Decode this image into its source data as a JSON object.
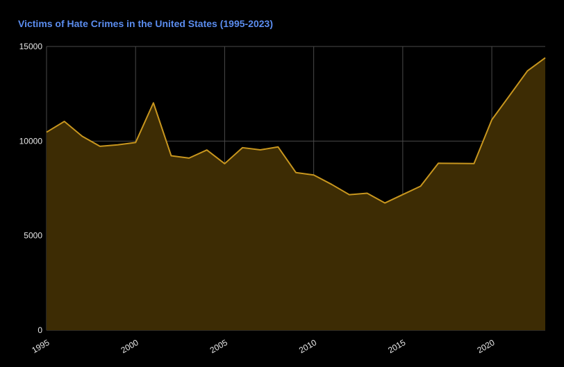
{
  "chart_data": {
    "type": "area",
    "title": "Victims of Hate Crimes in the United States (1995-2023)",
    "xlabel": "",
    "ylabel": "",
    "x": [
      1995,
      1996,
      1997,
      1998,
      1999,
      2000,
      2001,
      2002,
      2003,
      2004,
      2005,
      2006,
      2007,
      2008,
      2009,
      2010,
      2011,
      2012,
      2013,
      2014,
      2015,
      2016,
      2017,
      2018,
      2019,
      2020,
      2021,
      2022,
      2023
    ],
    "series": [
      {
        "name": "",
        "values": [
          10469,
          11039,
          10255,
          9722,
          9802,
          9924,
          12020,
          9222,
          9100,
          9528,
          8804,
          9652,
          9535,
          9691,
          8336,
          8208,
          7713,
          7164,
          7242,
          6727,
          7173,
          7615,
          8828,
          8819,
          8812,
          11126,
          12411,
          13711,
          14400
        ]
      }
    ],
    "xlim": [
      1995,
      2023
    ],
    "ylim": [
      0,
      15000
    ],
    "x_ticks": [
      "1995",
      "2000",
      "2005",
      "2010",
      "2015",
      "2020"
    ],
    "y_ticks": [
      "0",
      "5000",
      "10000",
      "15000"
    ],
    "grid": true,
    "legend": "none",
    "colors": {
      "background": "#000000",
      "line": "#c8961e",
      "fill": "#3d2c04",
      "grid": "#4a4a4a",
      "title": "#5b8def",
      "tick_text": "#e8e8e8"
    }
  }
}
